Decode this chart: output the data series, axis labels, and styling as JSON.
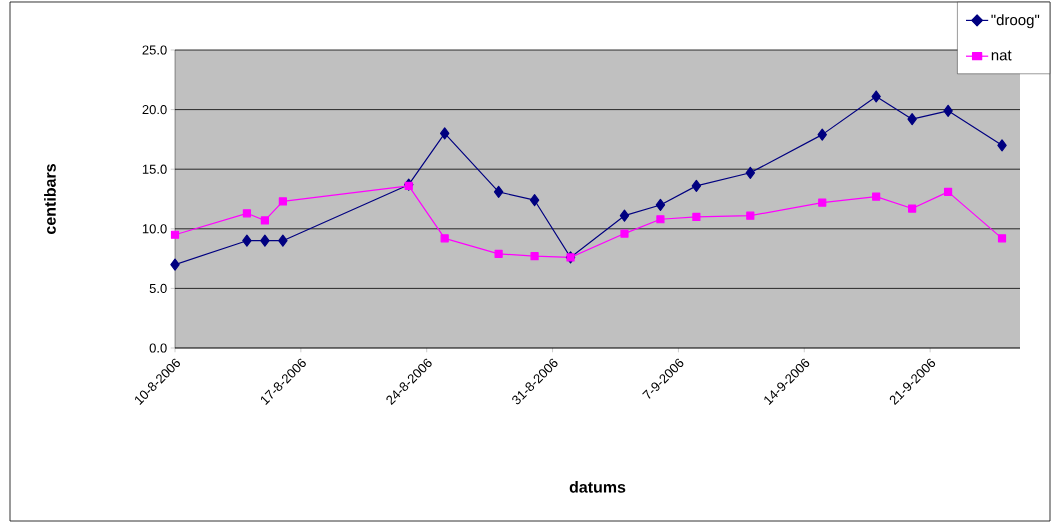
{
  "chart_data": {
    "type": "line",
    "xlabel": "datums",
    "ylabel": "centibars",
    "x": [
      "2006-08-10",
      "2006-08-14",
      "2006-08-15",
      "2006-08-16",
      "2006-08-23",
      "2006-08-25",
      "2006-08-28",
      "2006-08-30",
      "2006-09-01",
      "2006-09-04",
      "2006-09-06",
      "2006-09-08",
      "2006-09-11",
      "2006-09-15",
      "2006-09-18",
      "2006-09-20",
      "2006-09-22",
      "2006-09-25"
    ],
    "series": [
      {
        "name": "\"droog\"",
        "color": "#000080",
        "marker": "diamond",
        "values": [
          7.0,
          9.0,
          9.0,
          9.0,
          13.7,
          18.0,
          13.1,
          12.4,
          7.6,
          11.1,
          12.0,
          13.6,
          14.7,
          17.9,
          21.1,
          19.2,
          19.9,
          17.0
        ]
      },
      {
        "name": "nat",
        "color": "#ff00ff",
        "marker": "square",
        "values": [
          9.5,
          11.3,
          10.7,
          12.3,
          13.6,
          9.2,
          7.9,
          7.7,
          7.6,
          9.6,
          10.8,
          11.0,
          11.1,
          12.2,
          12.7,
          11.7,
          13.1,
          9.2
        ]
      }
    ],
    "xlim": [
      "2006-08-10",
      "2006-09-26"
    ],
    "xticks": [
      {
        "value": "2006-08-10",
        "label": "10-8-2006"
      },
      {
        "value": "2006-08-17",
        "label": "17-8-2006"
      },
      {
        "value": "2006-08-24",
        "label": "24-8-2006"
      },
      {
        "value": "2006-08-31",
        "label": "31-8-2006"
      },
      {
        "value": "2006-09-07",
        "label": "7-9-2006"
      },
      {
        "value": "2006-09-14",
        "label": "14-9-2006"
      },
      {
        "value": "2006-09-21",
        "label": "21-9-2006"
      }
    ],
    "ylim": [
      0,
      25
    ],
    "yticks": [
      {
        "value": 0,
        "label": "0.0"
      },
      {
        "value": 5,
        "label": "5.0"
      },
      {
        "value": 10,
        "label": "10.0"
      },
      {
        "value": 15,
        "label": "15.0"
      },
      {
        "value": 20,
        "label": "20.0"
      },
      {
        "value": 25,
        "label": "25.0"
      }
    ],
    "grid": "y",
    "legend": "top right",
    "line_style": "solid"
  }
}
